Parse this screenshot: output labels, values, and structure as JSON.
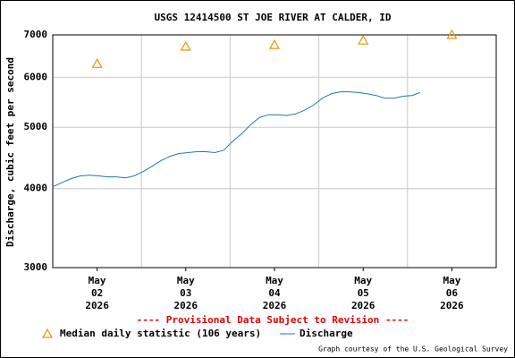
{
  "chart_data": {
    "type": "line",
    "title": "USGS 12414500 ST JOE RIVER AT CALDER, ID",
    "y_label": "Discharge, cubic feet per second",
    "notice": "---- Provisional Data Subject to Revision ----",
    "credit": "Graph courtesy of the U.S. Geological Survey",
    "log_y": true,
    "grid": true,
    "xlim": [
      0.5,
      5.5
    ],
    "xticks": [
      {
        "value": 1,
        "label": "May\n02\n2026"
      },
      {
        "value": 2,
        "label": "May\n03\n2026"
      },
      {
        "value": 3,
        "label": "May\n04\n2026"
      },
      {
        "value": 4,
        "label": "May\n05\n2026"
      },
      {
        "value": 5,
        "label": "May\n06\n2026"
      }
    ],
    "ylim": [
      3000,
      7000
    ],
    "yticks": [
      3000,
      4000,
      5000,
      6000,
      7000
    ],
    "series": [
      {
        "name": "Median daily statistic (106 years)",
        "color": "#e69500",
        "marker": "triangle",
        "x": [
          1,
          2,
          3,
          4,
          5
        ],
        "values": [
          6300,
          6710,
          6750,
          6860,
          7000
        ]
      },
      {
        "name": "Discharge",
        "color": "#1f77b4",
        "marker": "line",
        "x": [
          0.5,
          0.611,
          0.712,
          0.813,
          0.914,
          1.015,
          1.116,
          1.217,
          1.318,
          1.419,
          1.52,
          1.621,
          1.722,
          1.823,
          1.924,
          2.025,
          2.126,
          2.227,
          2.328,
          2.429,
          2.53,
          2.631,
          2.732,
          2.833,
          2.934,
          3.035,
          3.136,
          3.237,
          3.338,
          3.439,
          3.54,
          3.641,
          3.742,
          3.843,
          3.944,
          4.045,
          4.146,
          4.247,
          4.348,
          4.449,
          4.551,
          4.641
        ],
        "values": [
          4026,
          4092,
          4150,
          4190,
          4200,
          4190,
          4175,
          4175,
          4160,
          4190,
          4257,
          4340,
          4430,
          4500,
          4545,
          4560,
          4575,
          4575,
          4560,
          4600,
          4755,
          4885,
          5050,
          5185,
          5235,
          5235,
          5220,
          5250,
          5320,
          5420,
          5560,
          5650,
          5690,
          5690,
          5675,
          5650,
          5615,
          5560,
          5560,
          5600,
          5615,
          5675
        ]
      }
    ]
  }
}
